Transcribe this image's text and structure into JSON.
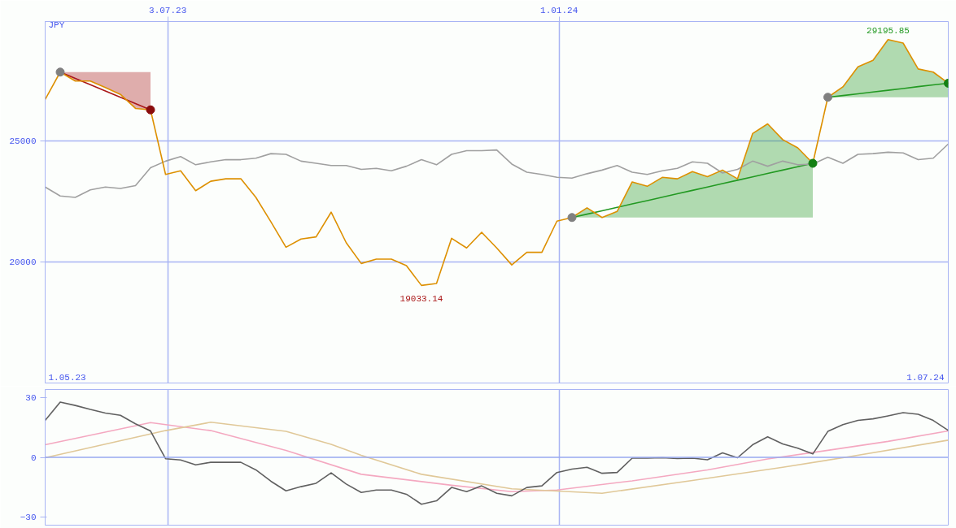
{
  "chart_data": [
    {
      "type": "line",
      "ylabel": "JPY",
      "x": [
        "2023-05-07",
        "2023-05-14",
        "2023-05-21",
        "2023-05-28",
        "2023-06-04",
        "2023-06-11",
        "2023-06-18",
        "2023-06-25",
        "2023-07-02",
        "2023-07-09",
        "2023-07-16",
        "2023-07-23",
        "2023-07-30",
        "2023-08-06",
        "2023-08-13",
        "2023-08-20",
        "2023-08-27",
        "2023-09-03",
        "2023-09-10",
        "2023-09-17",
        "2023-09-24",
        "2023-10-01",
        "2023-10-08",
        "2023-10-15",
        "2023-10-22",
        "2023-10-29",
        "2023-11-05",
        "2023-11-12",
        "2023-11-19",
        "2023-11-26",
        "2023-12-03",
        "2023-12-10",
        "2023-12-17",
        "2023-12-24",
        "2023-12-31",
        "2024-01-07",
        "2024-01-14",
        "2024-01-21",
        "2024-01-28",
        "2024-02-04",
        "2024-02-11",
        "2024-02-18",
        "2024-02-25",
        "2024-03-03",
        "2024-03-10",
        "2024-03-17",
        "2024-03-24",
        "2024-03-31",
        "2024-04-07",
        "2024-04-14",
        "2024-04-21",
        "2024-04-28",
        "2024-05-05",
        "2024-05-12",
        "2024-05-19",
        "2024-05-26",
        "2024-06-02",
        "2024-06-09",
        "2024-06-16",
        "2024-06-23",
        "2024-06-30"
      ],
      "series": [
        {
          "color": "#aa1818",
          "x": [
            "2023-05-14",
            "2023-05-21",
            "2023-05-28",
            "2023-06-04",
            "2023-06-11",
            "2023-06-18",
            "2023-06-25"
          ],
          "values": [
            27850,
            27590,
            27330,
            27070,
            26810,
            26550,
            26290
          ],
          "lower": [
            27850,
            27480,
            27480,
            27210,
            26930,
            26350,
            26290
          ],
          "upper": [
            27850,
            27850,
            27850,
            27850,
            27850,
            27850,
            27850
          ]
        },
        {
          "color": "#229922",
          "x": [
            "2024-01-07",
            "2024-01-14",
            "2024-01-21",
            "2024-01-28",
            "2024-02-04",
            "2024-02-11",
            "2024-02-18",
            "2024-02-25",
            "2024-03-03",
            "2024-03-10",
            "2024-03-17",
            "2024-03-24",
            "2024-03-31",
            "2024-04-07",
            "2024-04-14",
            "2024-04-21",
            "2024-04-28"
          ],
          "values": [
            21840,
            21980,
            22120,
            22260,
            22400,
            22540,
            22680,
            22820,
            22960,
            23100,
            23240,
            23380,
            23520,
            23660,
            23800,
            23940,
            24080
          ],
          "upper": [
            21840,
            22240,
            21840,
            22090,
            23310,
            23130,
            23500,
            23440,
            23740,
            23530,
            23800,
            23440,
            25310,
            25710,
            25060,
            24720,
            24080
          ],
          "lower": [
            21840,
            21840,
            21840,
            21840,
            21840,
            21840,
            21840,
            21840,
            21840,
            21840,
            21840,
            21840,
            21840,
            21840,
            21840,
            21840,
            21840
          ]
        },
        {
          "color": "#229922",
          "x": [
            "2024-05-05",
            "2024-05-12",
            "2024-05-19",
            "2024-05-26",
            "2024-06-02",
            "2024-06-09",
            "2024-06-16",
            "2024-06-23",
            "2024-06-30"
          ],
          "values": [
            26810,
            26880,
            26950,
            27030,
            27100,
            27170,
            27250,
            27320,
            27390
          ],
          "upper": [
            26810,
            27240,
            28070,
            28340,
            29195.85,
            29050,
            27980,
            27850,
            27390
          ],
          "lower": [
            26810,
            26810,
            26810,
            26810,
            26810,
            26810,
            26810,
            26810,
            26810
          ]
        },
        {
          "color": "#a0a0a0",
          "values": [
            23100,
            22730,
            22670,
            22980,
            23100,
            23040,
            23160,
            23900,
            24170,
            24360,
            24020,
            24140,
            24230,
            24230,
            24290,
            24480,
            24450,
            24170,
            24080,
            23990,
            23990,
            23830,
            23870,
            23770,
            23960,
            24230,
            24020,
            24450,
            24600,
            24600,
            24630,
            24050,
            23710,
            23620,
            23500,
            23470,
            23650,
            23800,
            23990,
            23710,
            23620,
            23770,
            23870,
            24140,
            24080,
            23680,
            23830,
            24170,
            23960,
            24170,
            24020,
            24050,
            24330,
            24080,
            24450,
            24480,
            24540,
            24510,
            24230,
            24290,
            24880
          ]
        },
        {
          "color": "#dd9000",
          "values": [
            26720,
            27850,
            27480,
            27480,
            27210,
            26930,
            26350,
            26290,
            23620,
            23770,
            22950,
            23340,
            23440,
            23440,
            22670,
            21660,
            20610,
            20950,
            21040,
            22060,
            20800,
            19940,
            20120,
            20120,
            19850,
            19033.14,
            19110,
            20980,
            20580,
            21230,
            20580,
            19880,
            20400,
            20400,
            21690,
            21840,
            22240,
            21840,
            22090,
            23310,
            23130,
            23500,
            23440,
            23740,
            23530,
            23800,
            23440,
            25310,
            25710,
            25060,
            24720,
            24080,
            26810,
            27240,
            28070,
            28340,
            29195.85,
            29050,
            27980,
            27850,
            27390
          ]
        },
        {
          "type": "scatter",
          "marker": "circle",
          "color": "#808080",
          "x": [
            "2023-05-14",
            "2024-01-07",
            "2024-05-05"
          ],
          "values": [
            27850,
            21840,
            26810
          ]
        },
        {
          "type": "scatter",
          "marker": "circle",
          "color": "#8a0c0c",
          "x": [
            "2023-06-25"
          ],
          "values": [
            26290
          ]
        },
        {
          "type": "scatter",
          "marker": "circle",
          "color": "#138013",
          "x": [
            "2024-04-28",
            "2024-06-30"
          ],
          "values": [
            24080,
            27390
          ]
        }
      ],
      "xlim": [
        "2023-05-07",
        "2024-06-30"
      ],
      "xticks": [
        {
          "value": "2023-07-03",
          "label": "3.07.23"
        },
        {
          "value": "2024-01-01",
          "label": "1.01.24"
        }
      ],
      "ylim": [
        15000,
        29940
      ],
      "yticks": [
        20000,
        25000
      ],
      "grid": true,
      "annotations": [
        "1.05.23",
        "1.07.24",
        {
          "text": "29195.85",
          "x": "2024-06-02",
          "y": 29195.85
        },
        {
          "text": "19033.14",
          "x": "2023-10-29",
          "y": 19033.14
        }
      ]
    },
    {
      "type": "line",
      "x": [
        "2023-05-07",
        "2023-05-14",
        "2023-05-21",
        "2023-05-28",
        "2023-06-04",
        "2023-06-11",
        "2023-06-18",
        "2023-06-25",
        "2023-07-02",
        "2023-07-09",
        "2023-07-16",
        "2023-07-23",
        "2023-07-30",
        "2023-08-06",
        "2023-08-13",
        "2023-08-20",
        "2023-08-27",
        "2023-09-03",
        "2023-09-10",
        "2023-09-17",
        "2023-09-24",
        "2023-10-01",
        "2023-10-08",
        "2023-10-15",
        "2023-10-22",
        "2023-10-29",
        "2023-11-05",
        "2023-11-12",
        "2023-11-19",
        "2023-11-26",
        "2023-12-03",
        "2023-12-10",
        "2023-12-17",
        "2023-12-24",
        "2023-12-31",
        "2024-01-07",
        "2024-01-14",
        "2024-01-21",
        "2024-01-28",
        "2024-02-04",
        "2024-02-11",
        "2024-02-18",
        "2024-02-25",
        "2024-03-03",
        "2024-03-10",
        "2024-03-17",
        "2024-03-24",
        "2024-03-31",
        "2024-04-07",
        "2024-04-14",
        "2024-04-21",
        "2024-04-28",
        "2024-05-05",
        "2024-05-12",
        "2024-05-19",
        "2024-05-26",
        "2024-06-02",
        "2024-06-09",
        "2024-06-16",
        "2024-06-23",
        "2024-06-30"
      ],
      "series": [
        {
          "color": "#f4a8c0",
          "x": [
            "2023-05-07",
            "2023-06-25",
            "2023-07-23",
            "2023-08-27",
            "2023-10-01",
            "2023-11-12",
            "2023-12-10",
            "2023-12-31",
            "2024-02-04",
            "2024-03-10",
            "2024-04-07",
            "2024-05-05",
            "2024-06-02",
            "2024-06-30"
          ],
          "values": [
            6.3,
            17.4,
            13.4,
            3.5,
            -8.5,
            -14,
            -17.2,
            -16.4,
            -11.8,
            -6.3,
            -0.8,
            3.5,
            8,
            13.2
          ]
        },
        {
          "color": "#e0c898",
          "x": [
            "2023-05-07",
            "2023-07-02",
            "2023-07-23",
            "2023-08-27",
            "2023-09-17",
            "2023-10-01",
            "2023-10-29",
            "2023-12-10",
            "2024-01-21",
            "2024-03-03",
            "2024-04-14",
            "2024-05-12",
            "2024-06-30"
          ],
          "values": [
            -0.2,
            13.4,
            17.6,
            13,
            6.5,
            1,
            -8.5,
            -15.8,
            -18,
            -11.6,
            -5,
            -0.2,
            8.6
          ]
        },
        {
          "color": "#606060",
          "values": [
            18.5,
            27.7,
            26,
            24,
            22.2,
            21.1,
            16.8,
            13.2,
            -0.7,
            -1.3,
            -3.8,
            -2.5,
            -2.5,
            -2.5,
            -6.3,
            -12,
            -16.8,
            -14.7,
            -13,
            -7.8,
            -13.4,
            -17.6,
            -16.4,
            -16.4,
            -18.5,
            -23.5,
            -21.8,
            -15.1,
            -17.2,
            -14.3,
            -18,
            -19.3,
            -15.1,
            -14.3,
            -7.6,
            -5.9,
            -5,
            -8,
            -7.6,
            -0.4,
            -0.4,
            -0.2,
            -0.6,
            -0.4,
            -1.2,
            2.2,
            -0.2,
            6.3,
            10.3,
            6.7,
            4.6,
            1.7,
            13,
            16.4,
            18.5,
            19.3,
            20.8,
            22.4,
            21.6,
            18.5,
            13.5
          ]
        }
      ],
      "xlim": [
        "2023-05-07",
        "2024-06-30"
      ],
      "xticks": [
        {
          "value": "2023-07-03",
          "label": null
        },
        {
          "value": "2024-01-01",
          "label": null
        }
      ],
      "ylim": [
        -34,
        34
      ],
      "yticks": [
        -30,
        0,
        30
      ],
      "grid": "x",
      "tick_labels": "y",
      "ref_lines": [
        {
          "axis": "y",
          "value": 0,
          "color": "#98a8f0"
        }
      ]
    }
  ]
}
